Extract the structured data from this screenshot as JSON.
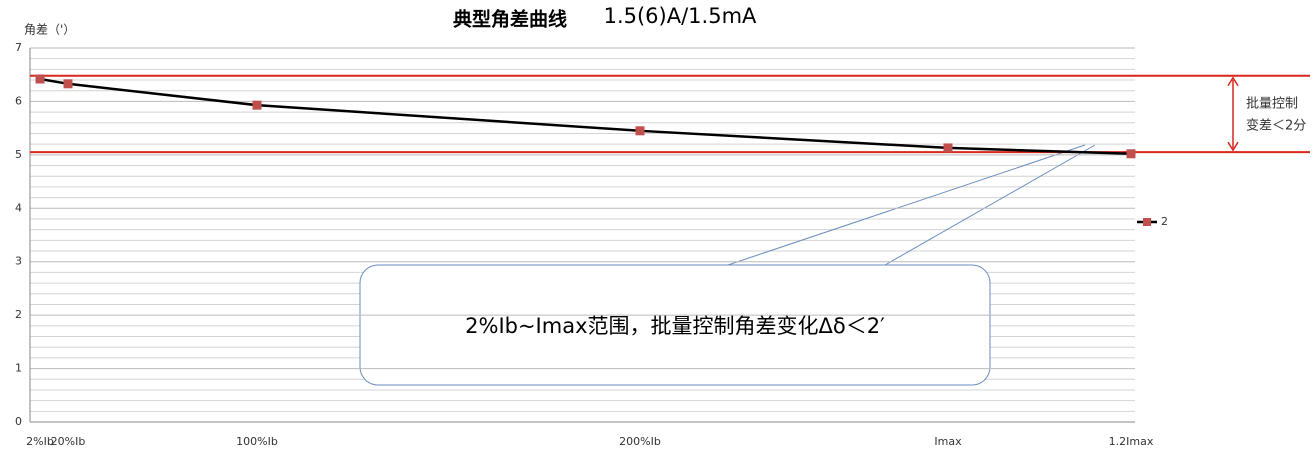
{
  "chart_data": {
    "type": "line",
    "title": "典型角差曲线",
    "subtitle": "1.5(6)A/1.5mA",
    "y_label": "角差（'）",
    "categories": [
      "2%Ib",
      "20%Ib",
      "100%Ib",
      "200%Ib",
      "Imax",
      "1.2Imax"
    ],
    "series": [
      {
        "name": "2",
        "color": "#000000",
        "marker_color": "#c0504d",
        "values": [
          6.42,
          6.33,
          5.93,
          5.45,
          5.13,
          5.02
        ]
      }
    ],
    "ylim": [
      0,
      7
    ],
    "yticks": [
      0,
      1,
      2,
      3,
      4,
      5,
      6,
      7
    ],
    "yminorticks": [
      0.2,
      0.4,
      0.6,
      0.8,
      1.2,
      1.4,
      1.6,
      1.8,
      2.2,
      2.4,
      2.6,
      2.8,
      3.2,
      3.4,
      3.6,
      3.8,
      4.2,
      4.4,
      4.6,
      4.8,
      5.2,
      5.4,
      5.6,
      5.8,
      6.2,
      6.4,
      6.6,
      6.8
    ],
    "grid": true,
    "reference_lines": {
      "color": "#d9261c",
      "values": [
        6.48,
        5.05
      ]
    },
    "band_annotation": [
      "批量控制",
      "变差＜2分"
    ],
    "callout": "2%Ib~Imax范围，批量控制角差变化Δδ＜2′"
  }
}
